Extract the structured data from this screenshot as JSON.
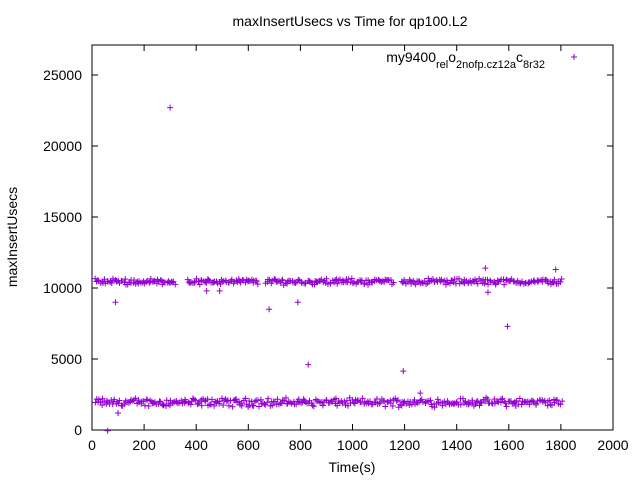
{
  "chart_data": {
    "type": "scatter",
    "title": "maxInsertUsecs vs Time for qp100.L2",
    "xlabel": "Time(s)",
    "ylabel": "maxInsertUsecs",
    "xlim": [
      0,
      2000
    ],
    "ylim": [
      0,
      27000
    ],
    "xticks": [
      0,
      200,
      400,
      600,
      800,
      1000,
      1200,
      1400,
      1600,
      1800,
      2000
    ],
    "yticks": [
      0,
      5000,
      10000,
      15000,
      20000,
      25000
    ],
    "grid": false,
    "legend_position": "top-right",
    "series": [
      {
        "name": "my9400_rel_o2nofp.cz12a_c8r32",
        "legend_parts": [
          {
            "text": "my9400",
            "sub": false
          },
          {
            "text": "rel",
            "sub": true
          },
          {
            "text": "o",
            "sub": false
          },
          {
            "text": "2nofp.cz12a",
            "sub": true
          },
          {
            "text": "c",
            "sub": false
          },
          {
            "text": "8r32",
            "sub": true
          }
        ],
        "color": "#9400d3",
        "marker": "plus",
        "clusters": [
          {
            "x_start": 10,
            "x_end": 1800,
            "step": 5,
            "y_center": 1950,
            "y_spread": 350
          },
          {
            "x_start": 10,
            "x_end": 1800,
            "step": 5,
            "y_center": 10450,
            "y_spread": 250,
            "skip_ranges": [
              [
                320,
                360
              ],
              [
                640,
                660
              ],
              [
                1160,
                1180
              ]
            ]
          }
        ],
        "outliers": [
          [
            60,
            -50
          ],
          [
            90,
            9000
          ],
          [
            300,
            22700
          ],
          [
            310,
            10400
          ],
          [
            440,
            9800
          ],
          [
            490,
            9800
          ],
          [
            680,
            8500
          ],
          [
            790,
            9000
          ],
          [
            830,
            4600
          ],
          [
            1195,
            4150
          ],
          [
            1510,
            11400
          ],
          [
            1520,
            9700
          ],
          [
            1595,
            7300
          ],
          [
            1780,
            11300
          ],
          [
            1260,
            2600
          ],
          [
            100,
            1200
          ]
        ]
      }
    ]
  }
}
